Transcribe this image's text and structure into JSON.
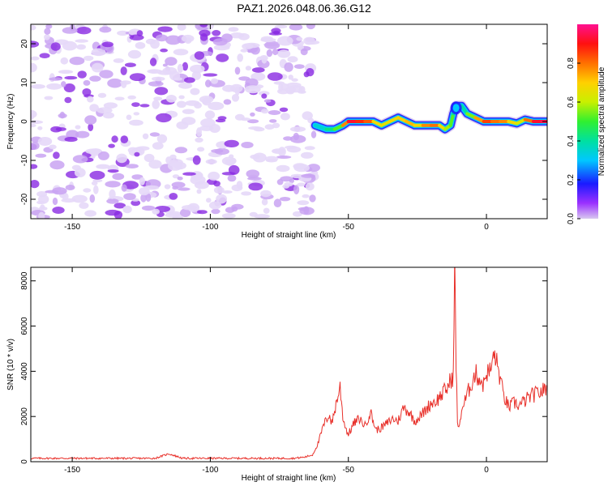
{
  "title": "PAZ1.2026.048.06.36.G12",
  "chart_data": [
    {
      "type": "heatmap",
      "title": "PAZ1.2026.048.06.36.G12",
      "xlabel": "Height of straight line (km)",
      "ylabel": "Frequency (Hz)",
      "xlim": [
        -165,
        22
      ],
      "ylim": [
        -25,
        25
      ],
      "xticks": [
        -150,
        -100,
        -50,
        0
      ],
      "yticks": [
        -20,
        -10,
        0,
        10,
        20
      ],
      "noise_region_x": [
        -165,
        -62
      ],
      "ridge": {
        "x": [
          -62,
          -58,
          -55,
          -52,
          -50,
          -47,
          -44,
          -41,
          -38,
          -35,
          -32,
          -29,
          -26,
          -23,
          -20,
          -17,
          -15,
          -13,
          -12,
          -11,
          -9,
          -7,
          -4,
          -1,
          2,
          5,
          8,
          11,
          14,
          17,
          20,
          22
        ],
        "frequency": [
          -1,
          -2,
          -2,
          -1,
          0,
          0,
          0,
          0,
          -1,
          0,
          1,
          0,
          -1,
          -1,
          -1,
          -1,
          -2,
          -1,
          2,
          4,
          4,
          2,
          1,
          0,
          0,
          0,
          0,
          -0.5,
          0.5,
          0,
          0,
          0
        ],
        "amplitude": [
          0.3,
          0.4,
          0.45,
          0.6,
          0.95,
          0.9,
          0.85,
          0.8,
          0.55,
          0.75,
          0.6,
          0.8,
          0.65,
          0.7,
          0.85,
          0.75,
          0.6,
          0.55,
          0.5,
          0.3,
          0.35,
          0.45,
          0.65,
          0.85,
          0.85,
          0.75,
          0.8,
          0.55,
          0.7,
          0.9,
          0.95,
          0.95
        ]
      },
      "colorbar": {
        "label": "Normalized spectral amplitude",
        "ticks": [
          "0.0",
          "0.2",
          "0.4",
          "0.6",
          "0.8"
        ],
        "range": [
          0,
          1
        ]
      }
    },
    {
      "type": "line",
      "xlabel": "Height of straight line (km)",
      "ylabel": "SNR (10 * v/v)",
      "xlim": [
        -165,
        22
      ],
      "ylim": [
        0,
        8600
      ],
      "xticks": [
        -150,
        -100,
        -50,
        0
      ],
      "yticks": [
        0,
        2000,
        4000,
        6000,
        8000
      ],
      "series": [
        {
          "name": "SNR",
          "color": "#e8302a",
          "x": [
            -165,
            -150,
            -140,
            -130,
            -120,
            -115,
            -110,
            -100,
            -90,
            -80,
            -70,
            -66,
            -63,
            -61,
            -59,
            -57,
            -56,
            -54,
            -53,
            -52,
            -51,
            -50,
            -48,
            -46,
            -44,
            -42,
            -40,
            -38,
            -36,
            -34,
            -32,
            -30,
            -28,
            -26,
            -24,
            -22,
            -20,
            -18,
            -16,
            -14,
            -13,
            -12,
            -11.5,
            -11,
            -10.5,
            -10,
            -9,
            -8,
            -6,
            -4,
            -2,
            -1,
            0,
            1,
            2,
            3,
            4,
            5,
            6,
            8,
            10,
            12,
            14,
            16,
            18,
            20,
            22
          ],
          "y": [
            150,
            150,
            150,
            150,
            150,
            350,
            150,
            150,
            150,
            150,
            150,
            200,
            300,
            800,
            1600,
            2100,
            1700,
            2800,
            3300,
            2000,
            1500,
            1200,
            1700,
            1900,
            1600,
            2200,
            1400,
            1500,
            1700,
            1900,
            1800,
            2400,
            2200,
            1800,
            2000,
            2300,
            2600,
            2700,
            3000,
            3300,
            3600,
            3800,
            8600,
            4500,
            1800,
            1400,
            2300,
            2600,
            3300,
            3900,
            3600,
            3400,
            4000,
            3900,
            4300,
            4800,
            4200,
            3700,
            3000,
            2400,
            2600,
            2500,
            2700,
            2900,
            3000,
            3100,
            3300
          ]
        }
      ]
    }
  ]
}
